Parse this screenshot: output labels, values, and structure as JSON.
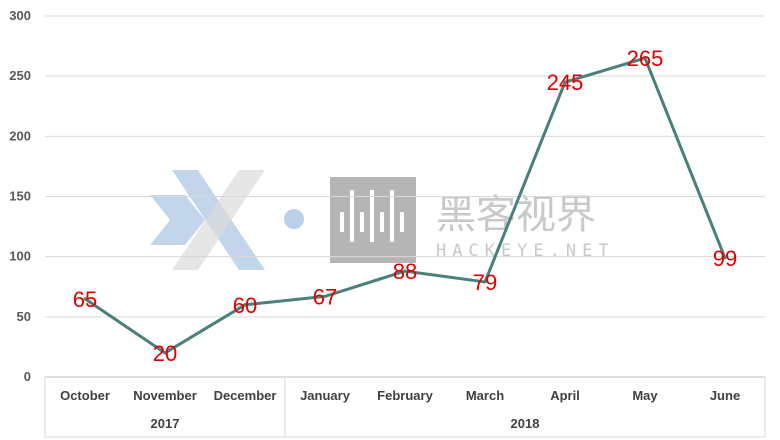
{
  "watermark": {
    "chinese": "黑客视界",
    "domain": "HACKEYE.NET"
  },
  "chart_data": {
    "type": "line",
    "categories": [
      "October",
      "November",
      "December",
      "January",
      "February",
      "March",
      "April",
      "May",
      "June"
    ],
    "groups": [
      {
        "label": "2017",
        "categories": [
          "October",
          "November",
          "December"
        ]
      },
      {
        "label": "2018",
        "categories": [
          "January",
          "February",
          "March",
          "April",
          "May",
          "June"
        ]
      }
    ],
    "series": [
      {
        "values": [
          65,
          20,
          60,
          67,
          88,
          79,
          245,
          265,
          99
        ],
        "color": "#4a7f7b"
      }
    ],
    "ylim": [
      0,
      300
    ],
    "yticks": [
      0,
      50,
      100,
      150,
      200,
      250,
      300
    ],
    "grid": true,
    "label_color": "#e00000",
    "title": "",
    "xlabel": "",
    "ylabel": ""
  }
}
